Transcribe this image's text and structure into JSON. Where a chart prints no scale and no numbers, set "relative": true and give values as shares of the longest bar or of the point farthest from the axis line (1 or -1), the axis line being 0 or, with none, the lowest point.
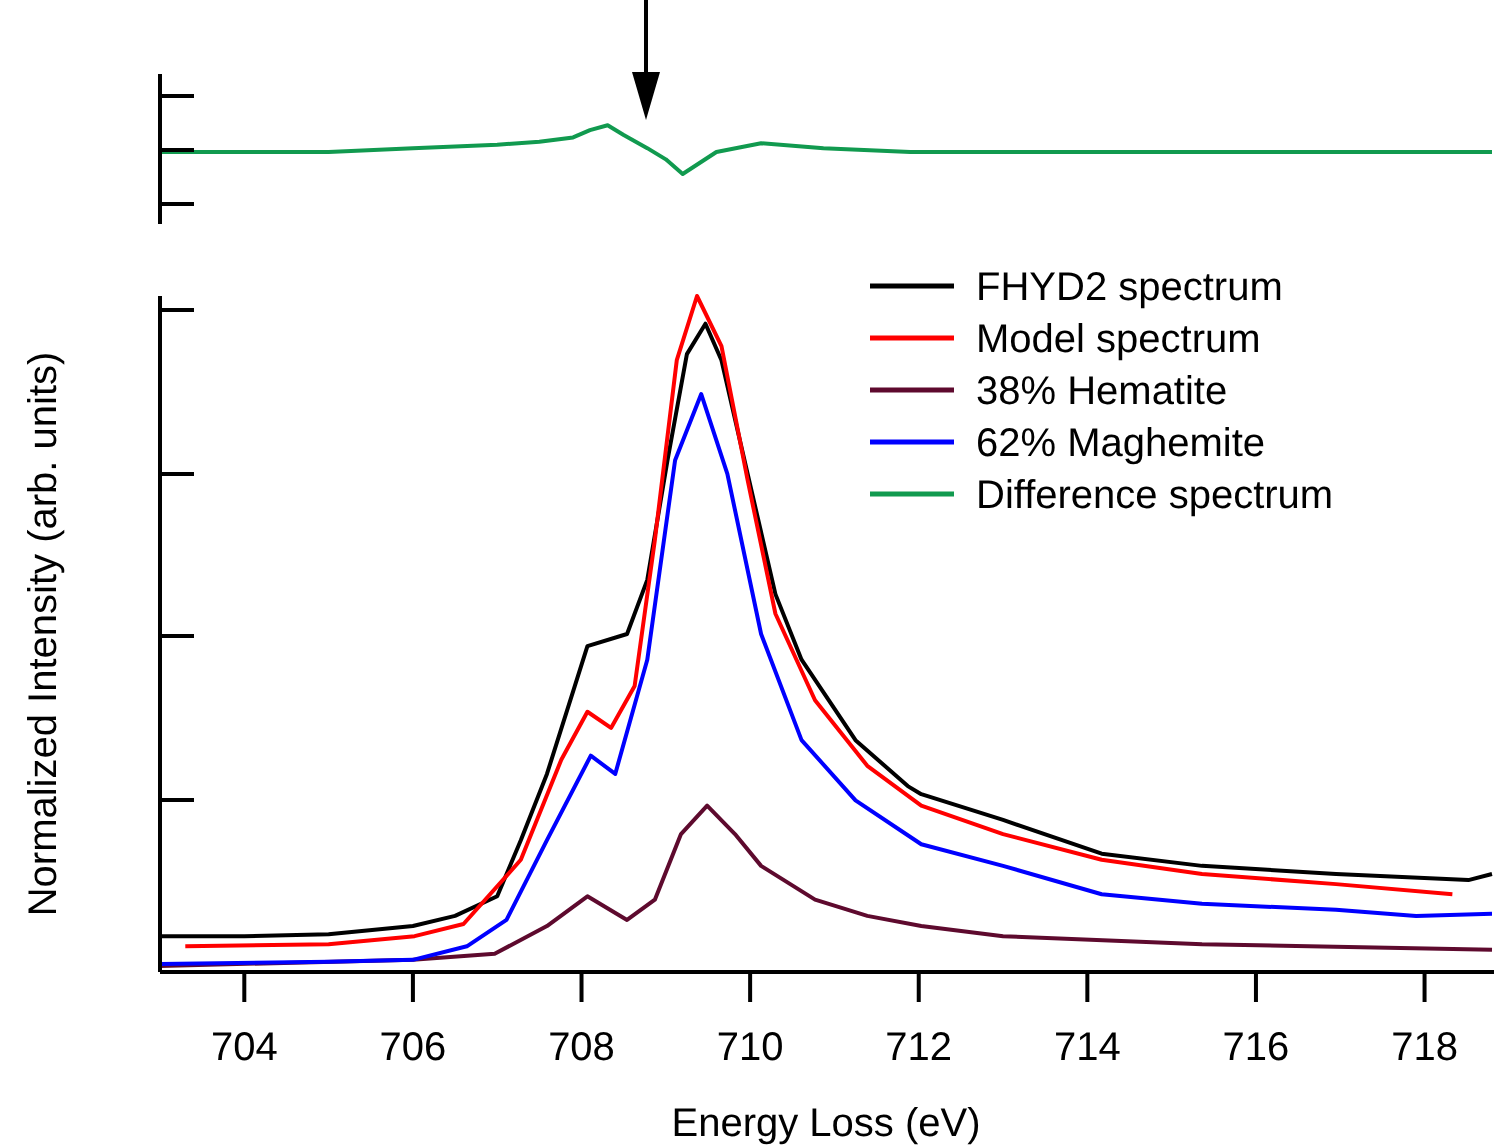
{
  "chart_data": [
    {
      "type": "line",
      "relative": true,
      "xlim": [
        703,
        718.8
      ],
      "xticks": [
        704,
        706,
        708,
        710,
        712,
        714,
        716,
        718
      ],
      "tick_labels": false,
      "series": [
        {
          "name": "Difference spectrum",
          "color": "#119a4f",
          "x": [
            703,
            705,
            706,
            707,
            707.5,
            707.9,
            708.1,
            708.31,
            708.5,
            708.78,
            709.0,
            709.2,
            709.6,
            710.13,
            710.87,
            711.9,
            713,
            714,
            715,
            716,
            717,
            718,
            718.8
          ],
          "values": [
            0.45,
            0.45,
            0.53,
            0.6,
            0.66,
            0.75,
            0.9,
            1.0,
            0.8,
            0.53,
            0.3,
            0,
            0.45,
            0.63,
            0.53,
            0.45,
            0.45,
            0.45,
            0.45,
            0.45,
            0.45,
            0.45,
            0.45
          ]
        }
      ]
    },
    {
      "type": "line",
      "relative": true,
      "xlim": [
        703,
        718.8
      ],
      "xticks": [
        704,
        706,
        708,
        710,
        712,
        714,
        716,
        718
      ],
      "xlabel": "Energy Loss (eV)",
      "ylabel": "Normalized Intensity (arb. units)",
      "legend": "top right",
      "series": [
        {
          "name": "FHYD2 spectrum",
          "color": "#000000",
          "x": [
            703,
            704,
            705,
            706,
            706.5,
            707,
            707.28,
            707.59,
            707.92,
            708.07,
            708.54,
            708.78,
            709.02,
            709.25,
            709.47,
            709.66,
            709.97,
            710.3,
            710.61,
            711.25,
            711.87,
            712.03,
            713,
            714.17,
            715.36,
            716.95,
            718.52,
            718.8
          ],
          "values": [
            0.053,
            0.053,
            0.056,
            0.068,
            0.083,
            0.112,
            0.195,
            0.293,
            0.423,
            0.482,
            0.5,
            0.58,
            0.757,
            0.914,
            0.959,
            0.905,
            0.737,
            0.559,
            0.462,
            0.343,
            0.275,
            0.263,
            0.225,
            0.175,
            0.157,
            0.145,
            0.136,
            0.145
          ]
        },
        {
          "name": "Model spectrum",
          "color": "#ff0000",
          "x": [
            703.3,
            705,
            706.02,
            706.6,
            707.28,
            707.76,
            708.07,
            708.35,
            708.63,
            708.87,
            709.13,
            709.37,
            709.66,
            709.97,
            710.3,
            710.77,
            711.39,
            712.03,
            713,
            714.17,
            715.36,
            716.95,
            718.33
          ],
          "values": [
            0.038,
            0.041,
            0.053,
            0.071,
            0.166,
            0.314,
            0.385,
            0.361,
            0.423,
            0.639,
            0.905,
            1.0,
            0.926,
            0.728,
            0.53,
            0.402,
            0.305,
            0.246,
            0.204,
            0.166,
            0.145,
            0.13,
            0.115
          ]
        },
        {
          "name": "38% Hematite",
          "color": "#5e0a2e",
          "x": [
            703,
            706,
            706.97,
            707.59,
            708.07,
            708.54,
            708.87,
            709.18,
            709.49,
            709.82,
            710.13,
            710.77,
            711.39,
            712.03,
            713,
            715.36,
            718.8
          ],
          "values": [
            0.009,
            0.018,
            0.027,
            0.068,
            0.112,
            0.077,
            0.107,
            0.204,
            0.246,
            0.204,
            0.157,
            0.107,
            0.083,
            0.068,
            0.053,
            0.041,
            0.033
          ]
        },
        {
          "name": "62% Maghemite",
          "color": "#0000ff",
          "x": [
            703,
            705,
            706,
            706.64,
            707.11,
            707.59,
            708.11,
            708.4,
            708.78,
            709.11,
            709.42,
            709.73,
            710.13,
            710.61,
            711.25,
            712.03,
            713,
            714.17,
            715.36,
            716.95,
            717.9,
            718.8
          ],
          "values": [
            0.012,
            0.015,
            0.018,
            0.038,
            0.077,
            0.195,
            0.32,
            0.293,
            0.462,
            0.757,
            0.855,
            0.737,
            0.5,
            0.343,
            0.254,
            0.189,
            0.157,
            0.115,
            0.101,
            0.092,
            0.083,
            0.086
          ]
        }
      ]
    }
  ]
}
